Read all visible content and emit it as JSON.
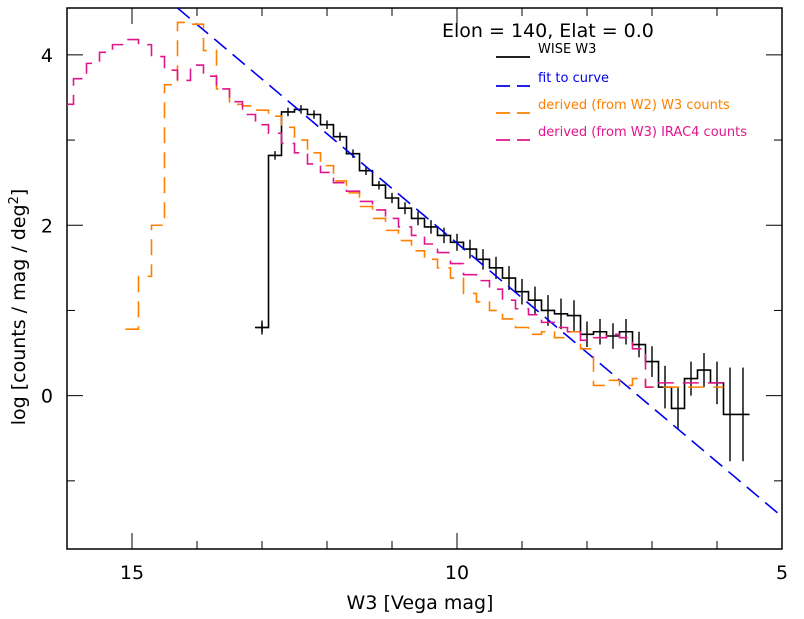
{
  "chart_data": {
    "type": "line",
    "title": "Elon = 140, Elat = 0.0",
    "xlabel": "W3 [Vega mag]",
    "ylabel_main": "log [counts / mag / deg",
    "ylabel_sup": "2",
    "ylabel_close": "]",
    "xlim": [
      16,
      5
    ],
    "ylim": [
      -1.8,
      4.55
    ],
    "xticks": [
      15,
      10,
      5
    ],
    "xtick_labels": [
      "15",
      "10",
      "5"
    ],
    "yticks": [
      0,
      2,
      4
    ],
    "ytick_labels": [
      "0",
      "2",
      "4"
    ],
    "legend_position": "top-right",
    "series": [
      {
        "name": "WISE W3",
        "color": "#000000",
        "style": "step",
        "x": [
          13.0,
          12.8,
          12.6,
          12.4,
          12.2,
          12.0,
          11.8,
          11.6,
          11.4,
          11.2,
          11.0,
          10.8,
          10.6,
          10.4,
          10.2,
          10.0,
          9.8,
          9.6,
          9.4,
          9.2,
          9.0,
          8.8,
          8.6,
          8.4,
          8.2,
          8.0,
          7.8,
          7.6,
          7.4,
          7.2,
          7.0,
          6.8,
          6.6,
          6.4,
          6.2,
          6.0,
          5.8,
          5.6
        ],
        "y": [
          0.8,
          2.82,
          3.33,
          3.36,
          3.3,
          3.18,
          3.04,
          2.84,
          2.64,
          2.47,
          2.32,
          2.2,
          2.08,
          1.98,
          1.88,
          1.8,
          1.72,
          1.6,
          1.5,
          1.38,
          1.22,
          1.12,
          1.0,
          0.96,
          0.94,
          0.72,
          0.75,
          0.7,
          0.75,
          0.6,
          0.4,
          0.1,
          -0.15,
          0.2,
          0.3,
          0.15,
          -0.22,
          -0.22
        ],
        "err": [
          0.0,
          0.0,
          0.02,
          0.02,
          0.02,
          0.03,
          0.03,
          0.04,
          0.05,
          0.05,
          0.06,
          0.07,
          0.08,
          0.08,
          0.09,
          0.1,
          0.11,
          0.12,
          0.13,
          0.14,
          0.15,
          0.16,
          0.18,
          0.18,
          0.18,
          0.15,
          0.15,
          0.15,
          0.15,
          0.15,
          0.18,
          0.25,
          0.25,
          0.2,
          0.2,
          0.25,
          0.55,
          0.55
        ]
      },
      {
        "name": "fit to curve",
        "color": "#0000ee",
        "style": "line",
        "x": [
          14.3,
          5.0
        ],
        "y": [
          4.55,
          -1.42
        ]
      },
      {
        "name": "derived (from W2) W3 counts",
        "color": "#ff7f00",
        "style": "step",
        "x": [
          15.0,
          14.8,
          14.6,
          14.4,
          14.2,
          14.0,
          13.8,
          13.6,
          13.4,
          13.2,
          13.0,
          12.8,
          12.6,
          12.4,
          12.2,
          12.0,
          11.8,
          11.6,
          11.4,
          11.2,
          11.0,
          10.8,
          10.6,
          10.4,
          10.2,
          10.0,
          9.8,
          9.6,
          9.4,
          9.2,
          9.0,
          8.8,
          8.6,
          8.4,
          8.2,
          8.0,
          7.8,
          7.6,
          7.4,
          7.2,
          7.0,
          6.8,
          6.6,
          6.4,
          6.2,
          6.0
        ],
        "y": [
          0.78,
          1.4,
          2.0,
          3.65,
          4.38,
          4.36,
          4.05,
          3.6,
          3.42,
          3.4,
          3.35,
          3.28,
          3.15,
          3.0,
          2.85,
          2.7,
          2.52,
          2.38,
          2.22,
          2.08,
          1.94,
          1.82,
          1.7,
          1.6,
          1.5,
          1.38,
          1.2,
          1.1,
          1.0,
          0.9,
          0.8,
          0.72,
          0.75,
          0.68,
          0.75,
          0.55,
          0.12,
          0.18,
          0.12,
          0.2,
          0.1,
          0.1,
          0.1,
          0.1,
          0.1,
          0.1
        ]
      },
      {
        "name": "derived (from W3) IRAC4 counts",
        "color": "#e0168c",
        "style": "step",
        "x": [
          16.0,
          15.8,
          15.6,
          15.4,
          15.2,
          15.0,
          14.8,
          14.6,
          14.4,
          14.2,
          14.0,
          13.8,
          13.6,
          13.4,
          13.2,
          13.0,
          12.8,
          12.6,
          12.4,
          12.2,
          12.0,
          11.8,
          11.6,
          11.4,
          11.2,
          11.0,
          10.8,
          10.6,
          10.4,
          10.2,
          10.0,
          9.8,
          9.6,
          9.4,
          9.2,
          9.0,
          8.8,
          8.6,
          8.4,
          8.2,
          8.0,
          7.8,
          7.6,
          7.4,
          7.2,
          7.0,
          6.8,
          6.6,
          6.4,
          6.2,
          6.0
        ],
        "y": [
          3.42,
          3.72,
          3.9,
          4.03,
          4.12,
          4.18,
          4.12,
          3.98,
          3.82,
          3.7,
          3.88,
          3.75,
          3.6,
          3.45,
          3.3,
          3.18,
          3.08,
          2.96,
          2.85,
          2.72,
          2.62,
          2.5,
          2.4,
          2.28,
          2.18,
          2.08,
          1.98,
          1.88,
          1.78,
          1.68,
          1.55,
          1.42,
          1.35,
          1.25,
          1.12,
          1.02,
          0.95,
          0.86,
          0.8,
          0.75,
          0.65,
          0.68,
          0.72,
          0.68,
          0.55,
          0.1,
          0.15,
          0.15,
          0.15,
          0.15,
          0.15
        ]
      }
    ]
  }
}
